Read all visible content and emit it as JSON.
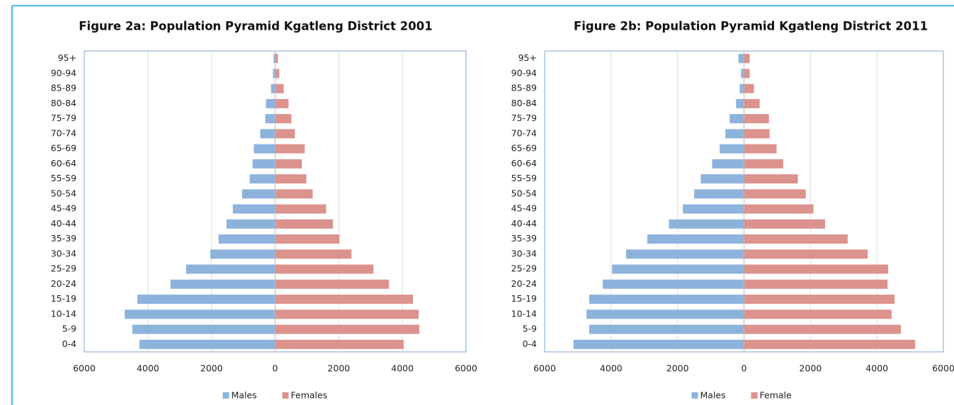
{
  "chart_data": [
    {
      "type": "bar",
      "title": "Figure 2a: Population Pyramid Kgatleng District 2001",
      "categories": [
        "0-4",
        "5-9",
        "10-14",
        "15-19",
        "20-24",
        "25-29",
        "30-34",
        "35-39",
        "40-44",
        "45-49",
        "50-54",
        "55-59",
        "60-64",
        "65-69",
        "70-74",
        "75-79",
        "80-84",
        "85-89",
        "90-94",
        "95+"
      ],
      "series": [
        {
          "name": "Males",
          "color": "#8db3dc",
          "values": [
            -4270,
            -4490,
            -4730,
            -4330,
            -3290,
            -2800,
            -2040,
            -1780,
            -1530,
            -1330,
            -1040,
            -800,
            -710,
            -670,
            -470,
            -310,
            -290,
            -130,
            -70,
            -50
          ]
        },
        {
          "name": "Females",
          "color": "#dc928d",
          "values": [
            4040,
            4530,
            4510,
            4330,
            3580,
            3090,
            2400,
            2020,
            1820,
            1600,
            1180,
            980,
            840,
            930,
            620,
            510,
            420,
            270,
            130,
            90
          ]
        }
      ],
      "xlim": [
        -6000,
        6000
      ],
      "xticks": [
        {
          "value": -6000,
          "label": "6000"
        },
        {
          "value": -4000,
          "label": "4000"
        },
        {
          "value": -2000,
          "label": "2000"
        },
        0,
        2000,
        4000,
        6000
      ],
      "grid": true,
      "legend": "bottom"
    },
    {
      "type": "bar",
      "title": "Figure 2b: Population Pyramid Kgatleng District 2011",
      "categories": [
        "0-4",
        "5-9",
        "10-14",
        "15-19",
        "20-24",
        "25-29",
        "30-34",
        "35-39",
        "40-44",
        "45-49",
        "50-54",
        "55-59",
        "60-64",
        "65-69",
        "70-74",
        "75-79",
        "80-84",
        "85-89",
        "90-94",
        "95+"
      ],
      "series": [
        {
          "name": "Males",
          "color": "#8db3dc",
          "values": [
            -5130,
            -4660,
            -4740,
            -4660,
            -4250,
            -3970,
            -3550,
            -2910,
            -2260,
            -1840,
            -1500,
            -1300,
            -960,
            -730,
            -560,
            -430,
            -240,
            -130,
            -90,
            -170
          ]
        },
        {
          "name": "Female",
          "color": "#dc928d",
          "values": [
            5150,
            4720,
            4440,
            4530,
            4320,
            4340,
            3720,
            3120,
            2440,
            2090,
            1860,
            1620,
            1180,
            980,
            770,
            750,
            470,
            300,
            170,
            170
          ]
        }
      ],
      "xlim": [
        -6000,
        6000
      ],
      "xticks": [
        {
          "value": -6000,
          "label": "6000"
        },
        {
          "value": -4000,
          "label": "4000"
        },
        {
          "value": -2000,
          "label": "2000"
        },
        0,
        2000,
        4000,
        6000
      ],
      "grid": true,
      "legend": "bottom"
    }
  ]
}
